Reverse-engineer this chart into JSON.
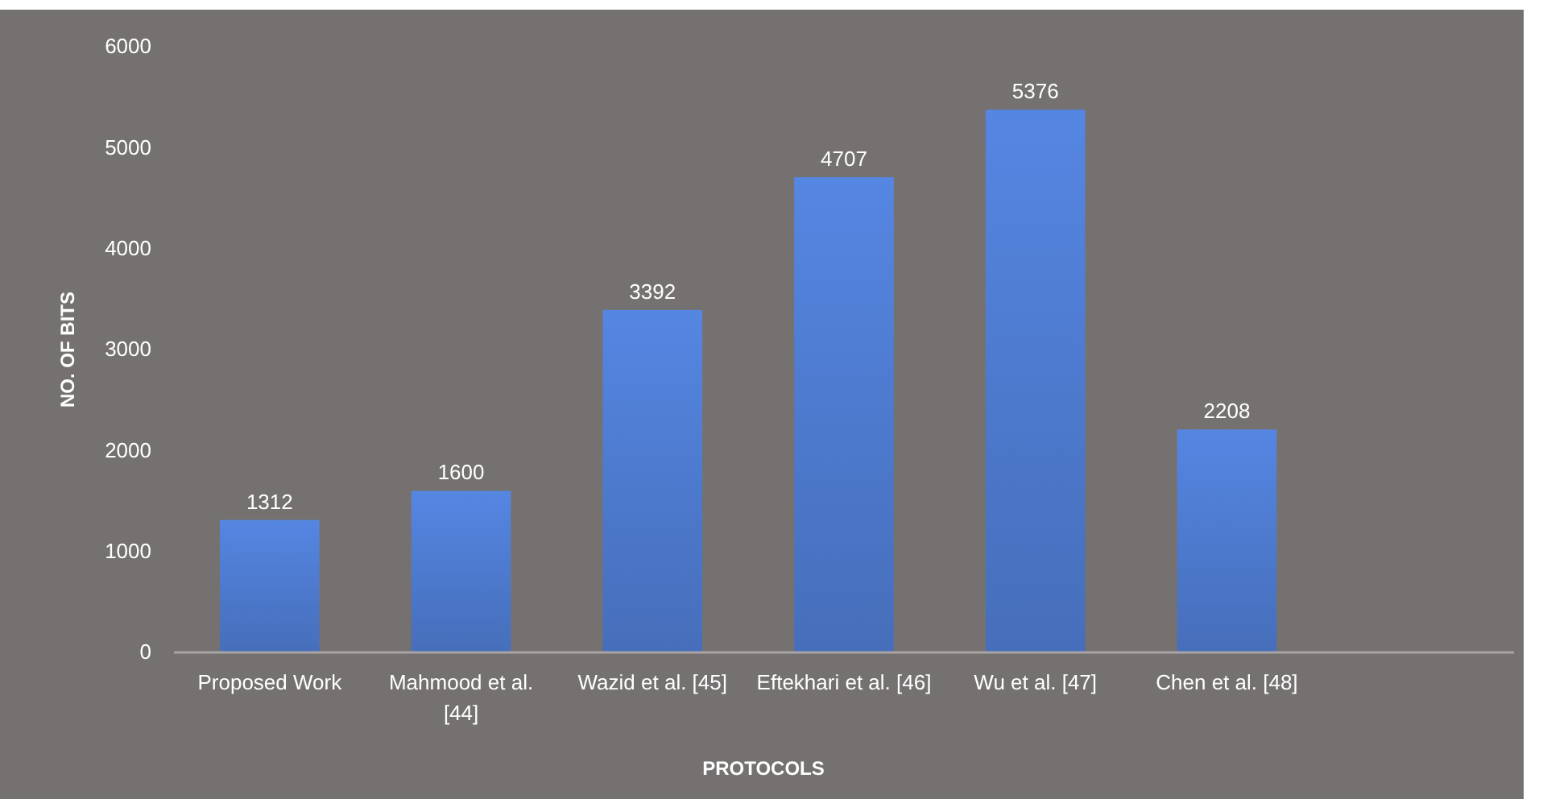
{
  "chart_data": {
    "type": "bar",
    "xlabel": "PROTOCOLS",
    "ylabel": "NO. OF BITS",
    "categories": [
      "Proposed Work",
      "Mahmood et al. [44]",
      "Wazid et al. [45]",
      "Eftekhari et al. [46]",
      "Wu et al. [47]",
      "Chen et al. [48]",
      null
    ],
    "values": [
      1312,
      1600,
      3392,
      4707,
      5376,
      2208,
      null
    ],
    "color": "#4a74c4",
    "data_labels": true,
    "grid": false,
    "ylim": [
      0,
      6000
    ],
    "yticks": [
      0,
      1000,
      2000,
      3000,
      4000,
      5000,
      6000
    ]
  }
}
